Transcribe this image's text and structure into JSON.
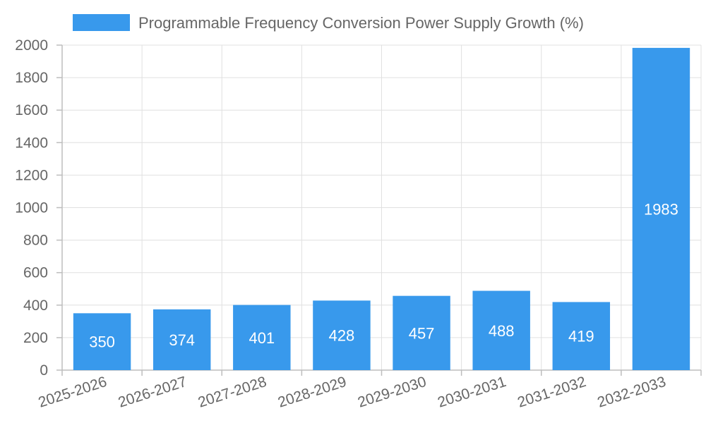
{
  "chart_data": {
    "type": "bar",
    "categories": [
      "2025-2026",
      "2026-2027",
      "2027-2028",
      "2028-2029",
      "2029-2030",
      "2030-2031",
      "2031-2032",
      "2032-2033"
    ],
    "series": [
      {
        "name": "Programmable Frequency Conversion Power Supply Growth (%)",
        "values": [
          350,
          374,
          401,
          428,
          457,
          488,
          419,
          1983
        ],
        "color": "#3899ec"
      }
    ],
    "y_ticks": [
      "0",
      "200",
      "400",
      "600",
      "800",
      "1000",
      "1200",
      "1400",
      "1600",
      "1800",
      "2000"
    ],
    "ylim": [
      0,
      2000
    ],
    "grid": true,
    "legend_position": "top-center",
    "data_labels": true
  }
}
